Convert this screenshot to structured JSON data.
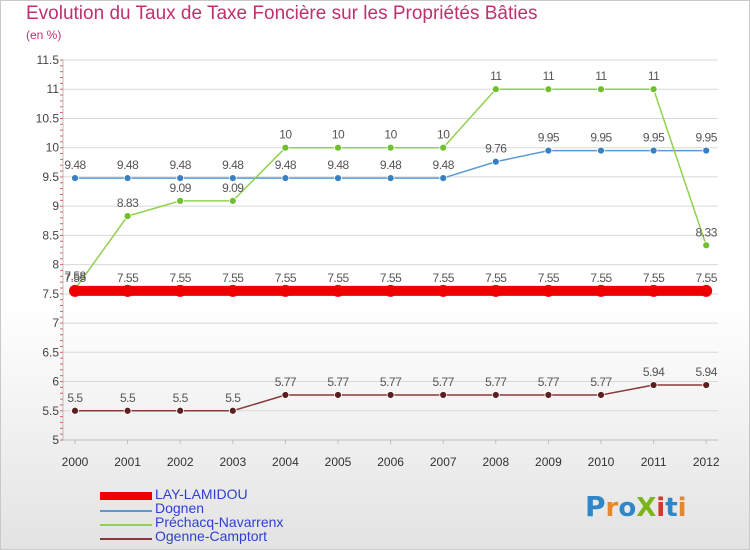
{
  "title": "Evolution du Taux de Taxe Foncière sur les Propriétés Bâties",
  "subtitle": "(en %)",
  "logo": {
    "text": "ProXiti",
    "colors": [
      "#2f86c8",
      "#e8872a",
      "#2f86c8",
      "#7ab51d",
      "#d6372b",
      "#2f86c8",
      "#e8872a"
    ]
  },
  "chart_data": {
    "type": "line",
    "title": "Evolution du Taux de Taxe Foncière sur les Propriétés Bâties",
    "ylabel": "(en %)",
    "xlabel": "",
    "ylim": [
      5,
      11.5
    ],
    "yticks": [
      "5",
      "5.5",
      "6",
      "6.5",
      "7",
      "7.5",
      "8",
      "8.5",
      "9",
      "9.5",
      "10",
      "10.5",
      "11",
      "11.5"
    ],
    "yticks_values": [
      5,
      5.5,
      6,
      6.5,
      7,
      7.5,
      8,
      8.5,
      9,
      9.5,
      10,
      10.5,
      11,
      11.5
    ],
    "categories": [
      "2000",
      "2001",
      "2002",
      "2003",
      "2004",
      "2005",
      "2006",
      "2007",
      "2008",
      "2009",
      "2010",
      "2011",
      "2012"
    ],
    "grid": true,
    "legend_position": "bottom-left",
    "series": [
      {
        "name": "LAY-LAMIDOU",
        "color": "#ee0000",
        "values": [
          7.55,
          7.55,
          7.55,
          7.55,
          7.55,
          7.55,
          7.55,
          7.55,
          7.55,
          7.55,
          7.55,
          7.55,
          7.55
        ],
        "labels": [
          "7.55",
          "7.55",
          "7.55",
          "7.55",
          "7.55",
          "7.55",
          "7.55",
          "7.55",
          "7.55",
          "7.55",
          "7.55",
          "7.55",
          "7.55"
        ]
      },
      {
        "name": "Dognen",
        "color": "#5b9bd5",
        "values": [
          9.48,
          9.48,
          9.48,
          9.48,
          9.48,
          9.48,
          9.48,
          9.48,
          9.76,
          9.95,
          9.95,
          9.95,
          9.95
        ],
        "labels": [
          "9.48",
          "9.48",
          "9.48",
          "9.48",
          "9.48",
          "9.48",
          "9.48",
          "9.48",
          "9.76",
          "9.95",
          "9.95",
          "9.95",
          "9.95"
        ]
      },
      {
        "name": "Préchacq-Navarrenx",
        "color": "#92d050",
        "values": [
          7.58,
          8.83,
          9.09,
          9.09,
          10,
          10,
          10,
          10,
          11,
          11,
          11,
          11,
          8.33
        ],
        "labels": [
          "7.58",
          "8.83",
          "9.09",
          "9.09",
          "10",
          "10",
          "10",
          "10",
          "11",
          "11",
          "11",
          "11",
          "8.33"
        ]
      },
      {
        "name": "Ogenne-Camptort",
        "color": "#8b3a3a",
        "values": [
          5.5,
          5.5,
          5.5,
          5.5,
          5.77,
          5.77,
          5.77,
          5.77,
          5.77,
          5.77,
          5.77,
          5.94,
          5.94
        ],
        "labels": [
          "5.5",
          "5.5",
          "5.5",
          "5.5",
          "5.77",
          "5.77",
          "5.77",
          "5.77",
          "5.77",
          "5.77",
          "5.77",
          "5.94",
          "5.94"
        ]
      }
    ]
  }
}
